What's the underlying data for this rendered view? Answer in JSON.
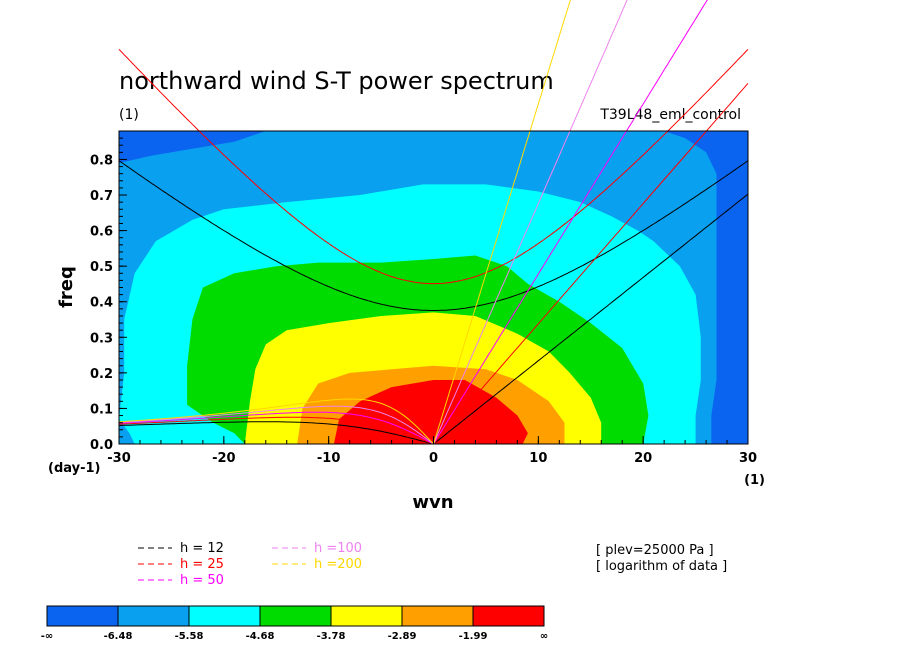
{
  "chart_data": {
    "type": "heatmap",
    "title": "northward wind S-T power spectrum",
    "subtitle": "(1)",
    "run_label": "T39L48_eml_control",
    "xlabel": "wvn",
    "ylabel": "freq",
    "x_unit_label": "(1)",
    "y_unit_label": "(day-1)",
    "xlim": [
      -30,
      30
    ],
    "ylim": [
      0,
      0.88
    ],
    "x_ticks": [
      -30,
      -20,
      -10,
      0,
      10,
      20,
      30
    ],
    "x_tick_labels": [
      "-30",
      "-20",
      "-10",
      "0",
      "10",
      "20",
      "30"
    ],
    "y_ticks": [
      0,
      0.1,
      0.2,
      0.3,
      0.4,
      0.5,
      0.6,
      0.7,
      0.8
    ],
    "y_tick_labels": [
      "0.0",
      "0.1",
      "0.2",
      "0.3",
      "0.4",
      "0.5",
      "0.6",
      "0.7",
      "0.8"
    ],
    "levels": [
      "-∞",
      "-6.48",
      "-5.58",
      "-4.68",
      "-3.78",
      "-2.89",
      "-1.99",
      "∞"
    ],
    "colors": [
      "#0a64f0",
      "#0aa0f0",
      "#00ffff",
      "#00dc00",
      "#ffff00",
      "#ffa000",
      "#ff0000"
    ],
    "contour_regions": [
      {
        "level_index": 1,
        "points": [
          [
            -30,
            0
          ],
          [
            -30,
            0.79
          ],
          [
            -27,
            0.81
          ],
          [
            -23,
            0.83
          ],
          [
            -19,
            0.85
          ],
          [
            -16,
            0.88
          ],
          [
            22,
            0.88
          ],
          [
            24,
            0.86
          ],
          [
            26,
            0.82
          ],
          [
            27,
            0.76
          ],
          [
            27,
            0.68
          ],
          [
            27,
            0.58
          ],
          [
            27,
            0.48
          ],
          [
            27,
            0.38
          ],
          [
            27,
            0.28
          ],
          [
            27,
            0.18
          ],
          [
            26.5,
            0.08
          ],
          [
            26.5,
            0
          ]
        ]
      },
      {
        "level_index": 2,
        "points": [
          [
            -30,
            0.07
          ],
          [
            -29.5,
            0.2
          ],
          [
            -29.5,
            0.35
          ],
          [
            -28.5,
            0.48
          ],
          [
            -26.5,
            0.57
          ],
          [
            -23,
            0.63
          ],
          [
            -20,
            0.66
          ],
          [
            -14,
            0.68
          ],
          [
            -7,
            0.7
          ],
          [
            -1,
            0.73
          ],
          [
            5,
            0.73
          ],
          [
            10,
            0.71
          ],
          [
            14,
            0.68
          ],
          [
            17,
            0.64
          ],
          [
            19.5,
            0.6
          ],
          [
            21,
            0.57
          ],
          [
            23.5,
            0.5
          ],
          [
            25,
            0.42
          ],
          [
            25.5,
            0.3
          ],
          [
            25.5,
            0.18
          ],
          [
            25,
            0.08
          ],
          [
            25,
            0
          ],
          [
            -28.5,
            0
          ],
          [
            -29,
            0.03
          ]
        ]
      },
      {
        "level_index": 3,
        "points": [
          [
            -23.5,
            0.11
          ],
          [
            -23.5,
            0.22
          ],
          [
            -23,
            0.35
          ],
          [
            -22,
            0.44
          ],
          [
            -19,
            0.48
          ],
          [
            -15,
            0.5
          ],
          [
            -11,
            0.51
          ],
          [
            -5,
            0.51
          ],
          [
            0,
            0.52
          ],
          [
            4,
            0.53
          ],
          [
            7,
            0.5
          ],
          [
            9,
            0.45
          ],
          [
            12,
            0.4
          ],
          [
            15,
            0.34
          ],
          [
            18,
            0.27
          ],
          [
            20,
            0.17
          ],
          [
            20.5,
            0.08
          ],
          [
            20,
            0
          ],
          [
            -18,
            0
          ],
          [
            -19,
            0.03
          ],
          [
            -21,
            0.06
          ]
        ]
      },
      {
        "level_index": 4,
        "points": [
          [
            -18,
            0
          ],
          [
            -17.5,
            0.12
          ],
          [
            -17,
            0.21
          ],
          [
            -16,
            0.28
          ],
          [
            -14,
            0.32
          ],
          [
            -10,
            0.34
          ],
          [
            -5,
            0.36
          ],
          [
            0,
            0.37
          ],
          [
            4,
            0.36
          ],
          [
            8,
            0.31
          ],
          [
            11,
            0.26
          ],
          [
            13,
            0.2
          ],
          [
            15,
            0.13
          ],
          [
            16,
            0.06
          ],
          [
            16,
            0
          ]
        ]
      },
      {
        "level_index": 5,
        "points": [
          [
            -13,
            0
          ],
          [
            -12.5,
            0.1
          ],
          [
            -11,
            0.17
          ],
          [
            -8,
            0.2
          ],
          [
            -4,
            0.21
          ],
          [
            0,
            0.22
          ],
          [
            5,
            0.21
          ],
          [
            8,
            0.18
          ],
          [
            11,
            0.12
          ],
          [
            12.5,
            0.06
          ],
          [
            12.5,
            0
          ]
        ]
      },
      {
        "level_index": 6,
        "points": [
          [
            -9.5,
            0
          ],
          [
            -9,
            0.07
          ],
          [
            -7,
            0.12
          ],
          [
            -4,
            0.16
          ],
          [
            0,
            0.18
          ],
          [
            3,
            0.18
          ],
          [
            6,
            0.13
          ],
          [
            8,
            0.08
          ],
          [
            9,
            0.03
          ],
          [
            8.5,
            0
          ]
        ]
      }
    ],
    "dispersion_curves": {
      "equivalent_depths": [
        {
          "label": "h = 12",
          "h": 12,
          "color": "#000000"
        },
        {
          "label": "h = 25",
          "h": 25,
          "color": "#ff0000"
        },
        {
          "label": "h = 50",
          "h": 50,
          "color": "#ff00ff"
        },
        {
          "label": "h =100",
          "h": 100,
          "color": "#ee82ee"
        },
        {
          "label": "h =200",
          "h": 200,
          "color": "#ffd700"
        }
      ],
      "waves": [
        "kelvin",
        "n1_inertio_gravity",
        "n1_equatorial_rossby"
      ]
    },
    "notes": [
      "[ plev=25000 Pa ]",
      "[ logarithm of data ]"
    ]
  }
}
